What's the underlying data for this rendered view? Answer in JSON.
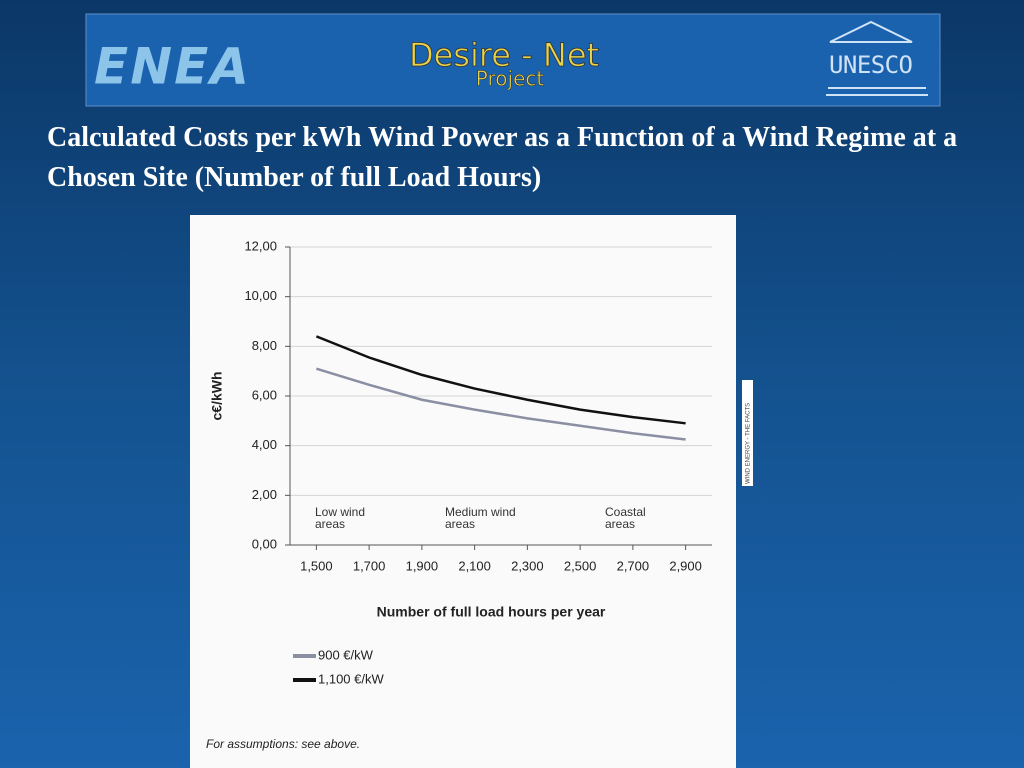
{
  "banner": {
    "left_logo": "ENEA",
    "project_name": "Desire - Net",
    "project_sub": "Project",
    "right_logo": "UNESCO"
  },
  "slide_title": "Calculated Costs per kWh Wind Power as a Function of a Wind Regime at a Chosen Site (Number of full Load Hours)",
  "side_label": "WIND ENERGY - THE FACTS",
  "footnote": "For assumptions: see above.",
  "chart_data": {
    "type": "line",
    "x_label": "Number of full load hours per year",
    "y_label": "c€/kWh",
    "x": [
      1500,
      1700,
      1900,
      2100,
      2300,
      2500,
      2700,
      2900
    ],
    "series": [
      {
        "name": "900 €/kW",
        "color": "#8a8fa3",
        "values": [
          7.1,
          6.45,
          5.85,
          5.45,
          5.1,
          4.8,
          4.5,
          4.25
        ]
      },
      {
        "name": "1,100 €/kW",
        "color": "#111111",
        "values": [
          8.4,
          7.55,
          6.85,
          6.3,
          5.85,
          5.45,
          5.15,
          4.9
        ]
      }
    ],
    "xlim": [
      1400,
      3000
    ],
    "ylim": [
      0,
      12
    ],
    "xticks": [
      {
        "value": 1500,
        "label": "1,500"
      },
      {
        "value": 1700,
        "label": "1,700"
      },
      {
        "value": 1900,
        "label": "1,900"
      },
      {
        "value": 2100,
        "label": "2,100"
      },
      {
        "value": 2300,
        "label": "2,300"
      },
      {
        "value": 2500,
        "label": "2,500"
      },
      {
        "value": 2700,
        "label": "2,700"
      },
      {
        "value": 2900,
        "label": "2,900"
      }
    ],
    "yticks": [
      {
        "value": 0,
        "label": "0,00"
      },
      {
        "value": 2,
        "label": "2,00"
      },
      {
        "value": 4,
        "label": "4,00"
      },
      {
        "value": 6,
        "label": "6,00"
      },
      {
        "value": 8,
        "label": "8,00"
      },
      {
        "value": 10,
        "label": "10,00"
      },
      {
        "value": 12,
        "label": "12,00"
      }
    ],
    "grid": true,
    "annotations": [
      "Low wind areas",
      "Medium wind areas",
      "Coastal areas"
    ]
  }
}
